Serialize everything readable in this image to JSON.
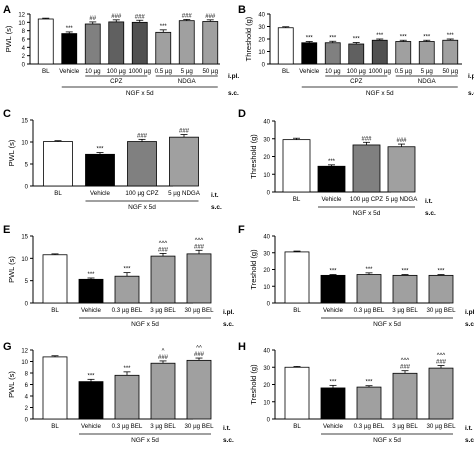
{
  "chart_data": [
    {
      "id": "A",
      "panel_letter": "A",
      "type": "bar",
      "ylabel": "PWL (s)",
      "ylim": [
        0,
        12
      ],
      "yticks": [
        0,
        2,
        4,
        6,
        8,
        10,
        12
      ],
      "categories": [
        "BL",
        "Vehicle",
        "10 µg",
        "100 µg",
        "1000 µg",
        "0.5 µg",
        "5 µg",
        "50 µg"
      ],
      "values": [
        10.8,
        7.3,
        9.6,
        10.1,
        10.0,
        7.6,
        10.4,
        10.2
      ],
      "errors": [
        0.2,
        0.4,
        0.5,
        0.5,
        0.5,
        0.6,
        0.3,
        0.4
      ],
      "fills": [
        "#ffffff",
        "#000000",
        "#808080",
        "#606060",
        "#505050",
        "#a0a0a0",
        "#a0a0a0",
        "#a0a0a0"
      ],
      "annotations": [
        "",
        "***",
        "##",
        "###",
        "###",
        "***",
        "###",
        "###"
      ],
      "groups": [
        {
          "label": "CPZ",
          "from": 2,
          "to": 4
        },
        {
          "label": "NDGA",
          "from": 5,
          "to": 7
        }
      ],
      "outer_label": "NGF x 5d",
      "outer_from": 1,
      "outer_to": 7,
      "route_top": "i.pl.",
      "route_bottom": "s.c."
    },
    {
      "id": "B",
      "panel_letter": "B",
      "type": "bar",
      "ylabel": "Threshold (g)",
      "ylim": [
        0,
        40
      ],
      "yticks": [
        0,
        10,
        20,
        30,
        40
      ],
      "categories": [
        "BL",
        "Vehicle",
        "10 µg",
        "100 µg",
        "1000 µg",
        "0.5 µg",
        "5 µg",
        "50 µg"
      ],
      "values": [
        29,
        17,
        17,
        16,
        19,
        18,
        18,
        19
      ],
      "errors": [
        0.8,
        1.0,
        1.2,
        1.2,
        1.0,
        1.0,
        1.0,
        1.0
      ],
      "fills": [
        "#ffffff",
        "#000000",
        "#808080",
        "#606060",
        "#505050",
        "#a0a0a0",
        "#a0a0a0",
        "#a0a0a0"
      ],
      "annotations": [
        "",
        "***",
        "***",
        "***",
        "***",
        "***",
        "***",
        "***"
      ],
      "groups": [
        {
          "label": "CPZ",
          "from": 2,
          "to": 4
        },
        {
          "label": "NDGA",
          "from": 5,
          "to": 7
        }
      ],
      "outer_label": "NGF x 5d",
      "outer_from": 1,
      "outer_to": 7,
      "route_top": "i.pl.",
      "route_bottom": "s.c."
    },
    {
      "id": "C",
      "panel_letter": "C",
      "type": "bar",
      "ylabel": "PWL (s)",
      "ylim": [
        0,
        15
      ],
      "yticks": [
        0,
        5,
        10,
        15
      ],
      "categories": [
        "BL",
        "Vehicle",
        "100 µg CPZ",
        "5 µg NDGA"
      ],
      "values": [
        10.1,
        7.2,
        10.1,
        11.1
      ],
      "errors": [
        0.2,
        0.4,
        0.5,
        0.6
      ],
      "fills": [
        "#ffffff",
        "#000000",
        "#808080",
        "#a0a0a0"
      ],
      "annotations": [
        "",
        "***",
        "###",
        "###"
      ],
      "groups": [],
      "outer_label": "NGF x 5d",
      "outer_from": 1,
      "outer_to": 3,
      "route_top": "i.t.",
      "route_bottom": "s.c."
    },
    {
      "id": "D",
      "panel_letter": "D",
      "type": "bar",
      "ylabel": "Threshold (g)",
      "ylim": [
        0,
        40
      ],
      "yticks": [
        0,
        10,
        20,
        30,
        40
      ],
      "categories": [
        "BL",
        "Vehicle",
        "100 µg CPZ",
        "5 µg NDGA"
      ],
      "values": [
        29.5,
        14.5,
        26.5,
        25.5
      ],
      "errors": [
        0.8,
        0.8,
        1.5,
        1.5
      ],
      "fills": [
        "#ffffff",
        "#000000",
        "#808080",
        "#a0a0a0"
      ],
      "annotations": [
        "",
        "***",
        "###",
        "###"
      ],
      "groups": [],
      "outer_label": "NGF x 5d",
      "outer_from": 1,
      "outer_to": 3,
      "route_top": "i.t.",
      "route_bottom": "s.c."
    },
    {
      "id": "E",
      "panel_letter": "E",
      "type": "bar",
      "ylabel": "PWL (s)",
      "ylim": [
        0,
        15
      ],
      "yticks": [
        0,
        5,
        10,
        15
      ],
      "categories": [
        "BL",
        "Vehicle",
        "0.3 µg BEL",
        "3 µg BEL",
        "30 µg BEL"
      ],
      "values": [
        10.8,
        5.3,
        6.0,
        10.5,
        11.0
      ],
      "errors": [
        0.2,
        0.3,
        0.8,
        0.6,
        0.8
      ],
      "fills": [
        "#ffffff",
        "#000000",
        "#a0a0a0",
        "#a0a0a0",
        "#a0a0a0"
      ],
      "annotations": [
        "",
        "***",
        "***",
        "^^^\n###",
        "^^^\n###"
      ],
      "groups": [],
      "outer_label": "NGF x 5d",
      "outer_from": 1,
      "outer_to": 4,
      "route_top": "i.pl.",
      "route_bottom": "s.c."
    },
    {
      "id": "F",
      "panel_letter": "F",
      "type": "bar",
      "ylabel": "Treshold (g)",
      "ylim": [
        0,
        40
      ],
      "yticks": [
        0,
        10,
        20,
        30,
        40
      ],
      "categories": [
        "BL",
        "Vehicle",
        "0.3 µg BEL",
        "3 µg BEL",
        "30 µg BEL"
      ],
      "values": [
        30.5,
        16.5,
        17.0,
        16.5,
        16.5
      ],
      "errors": [
        0.5,
        0.5,
        1.0,
        0.5,
        0.5
      ],
      "fills": [
        "#ffffff",
        "#000000",
        "#a0a0a0",
        "#a0a0a0",
        "#a0a0a0"
      ],
      "annotations": [
        "",
        "***",
        "***",
        "***",
        "***"
      ],
      "groups": [],
      "outer_label": "NGF x 5d",
      "outer_from": 1,
      "outer_to": 4,
      "route_top": "i.pl.",
      "route_bottom": "s.c."
    },
    {
      "id": "G",
      "panel_letter": "G",
      "type": "bar",
      "ylabel": "PWL (s)",
      "ylim": [
        0,
        12
      ],
      "yticks": [
        0,
        2,
        4,
        6,
        8,
        10,
        12
      ],
      "categories": [
        "BL",
        "Vehicle",
        "0.3 µg BEL",
        "3 µg BEL",
        "30 µg BEL"
      ],
      "values": [
        10.8,
        6.5,
        7.6,
        9.7,
        10.2
      ],
      "errors": [
        0.2,
        0.4,
        0.6,
        0.4,
        0.4
      ],
      "fills": [
        "#ffffff",
        "#000000",
        "#a0a0a0",
        "#a0a0a0",
        "#a0a0a0"
      ],
      "annotations": [
        "",
        "***",
        "***",
        "^\n###",
        "^^\n###"
      ],
      "groups": [],
      "outer_label": "NGF x 5d",
      "outer_from": 1,
      "outer_to": 4,
      "route_top": "i.t.",
      "route_bottom": "s.c."
    },
    {
      "id": "H",
      "panel_letter": "H",
      "type": "bar",
      "ylabel": "Treshold (g)",
      "ylim": [
        0,
        40
      ],
      "yticks": [
        0,
        10,
        20,
        30,
        40
      ],
      "categories": [
        "BL",
        "Vehicle",
        "0.3 µg BEL",
        "3 µg BEL",
        "30 µg BEL"
      ],
      "values": [
        30.0,
        18.0,
        18.5,
        26.5,
        29.5
      ],
      "errors": [
        0.5,
        1.5,
        0.8,
        1.5,
        1.5
      ],
      "fills": [
        "#ffffff",
        "#000000",
        "#a0a0a0",
        "#a0a0a0",
        "#a0a0a0"
      ],
      "annotations": [
        "",
        "***",
        "***",
        "^^^\n###",
        "^^^\n###"
      ],
      "groups": [],
      "outer_label": "NGF x 5d",
      "outer_from": 1,
      "outer_to": 4,
      "route_top": "i.t.",
      "route_bottom": "s.c."
    }
  ]
}
